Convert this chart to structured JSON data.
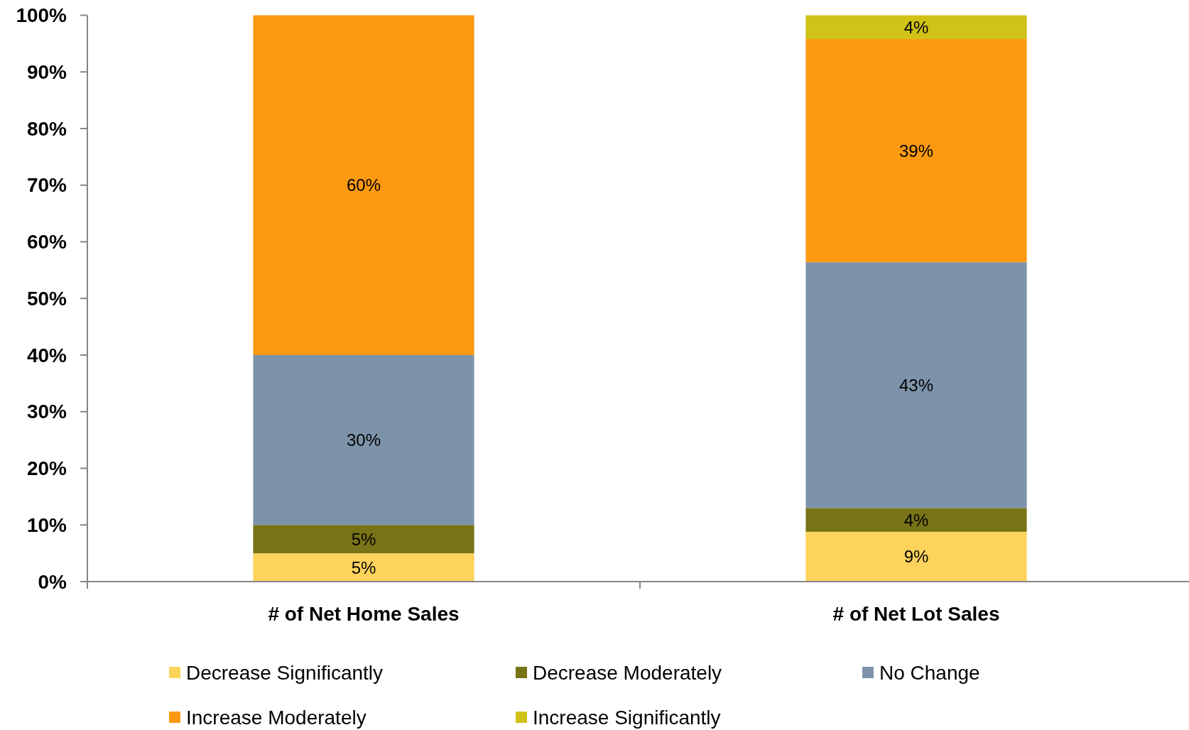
{
  "chart_data": {
    "type": "bar",
    "stacked": true,
    "categories": [
      "# of Net Home Sales",
      "# of Net Lot Sales"
    ],
    "series": [
      {
        "name": "Decrease Significantly",
        "color": "#fdd35c",
        "values": [
          5,
          8.8
        ],
        "value_labels": [
          "5%",
          "9%"
        ]
      },
      {
        "name": "Decrease Moderately",
        "color": "#787316",
        "values": [
          5,
          4.2
        ],
        "value_labels": [
          "5%",
          "4%"
        ]
      },
      {
        "name": "No Change",
        "color": "#7d93aa",
        "values": [
          30,
          43.4
        ],
        "value_labels": [
          "30%",
          "43%"
        ]
      },
      {
        "name": "Increase Moderately",
        "color": "#fd9a11",
        "values": [
          60,
          39.4
        ],
        "value_labels": [
          "60%",
          "39%"
        ]
      },
      {
        "name": "Increase Significantly",
        "color": "#d0c216",
        "values": [
          null,
          4.2
        ],
        "value_labels": [
          null,
          "4%"
        ]
      }
    ],
    "ylim": [
      0,
      100
    ],
    "yticks": [
      {
        "value": 0,
        "label": "0%"
      },
      {
        "value": 10,
        "label": "10%"
      },
      {
        "value": 20,
        "label": "20%"
      },
      {
        "value": 30,
        "label": "30%"
      },
      {
        "value": 40,
        "label": "40%"
      },
      {
        "value": 50,
        "label": "50%"
      },
      {
        "value": 60,
        "label": "60%"
      },
      {
        "value": 70,
        "label": "70%"
      },
      {
        "value": 80,
        "label": "80%"
      },
      {
        "value": 90,
        "label": "90%"
      },
      {
        "value": 100,
        "label": "100%"
      }
    ],
    "legend": "bottom"
  }
}
